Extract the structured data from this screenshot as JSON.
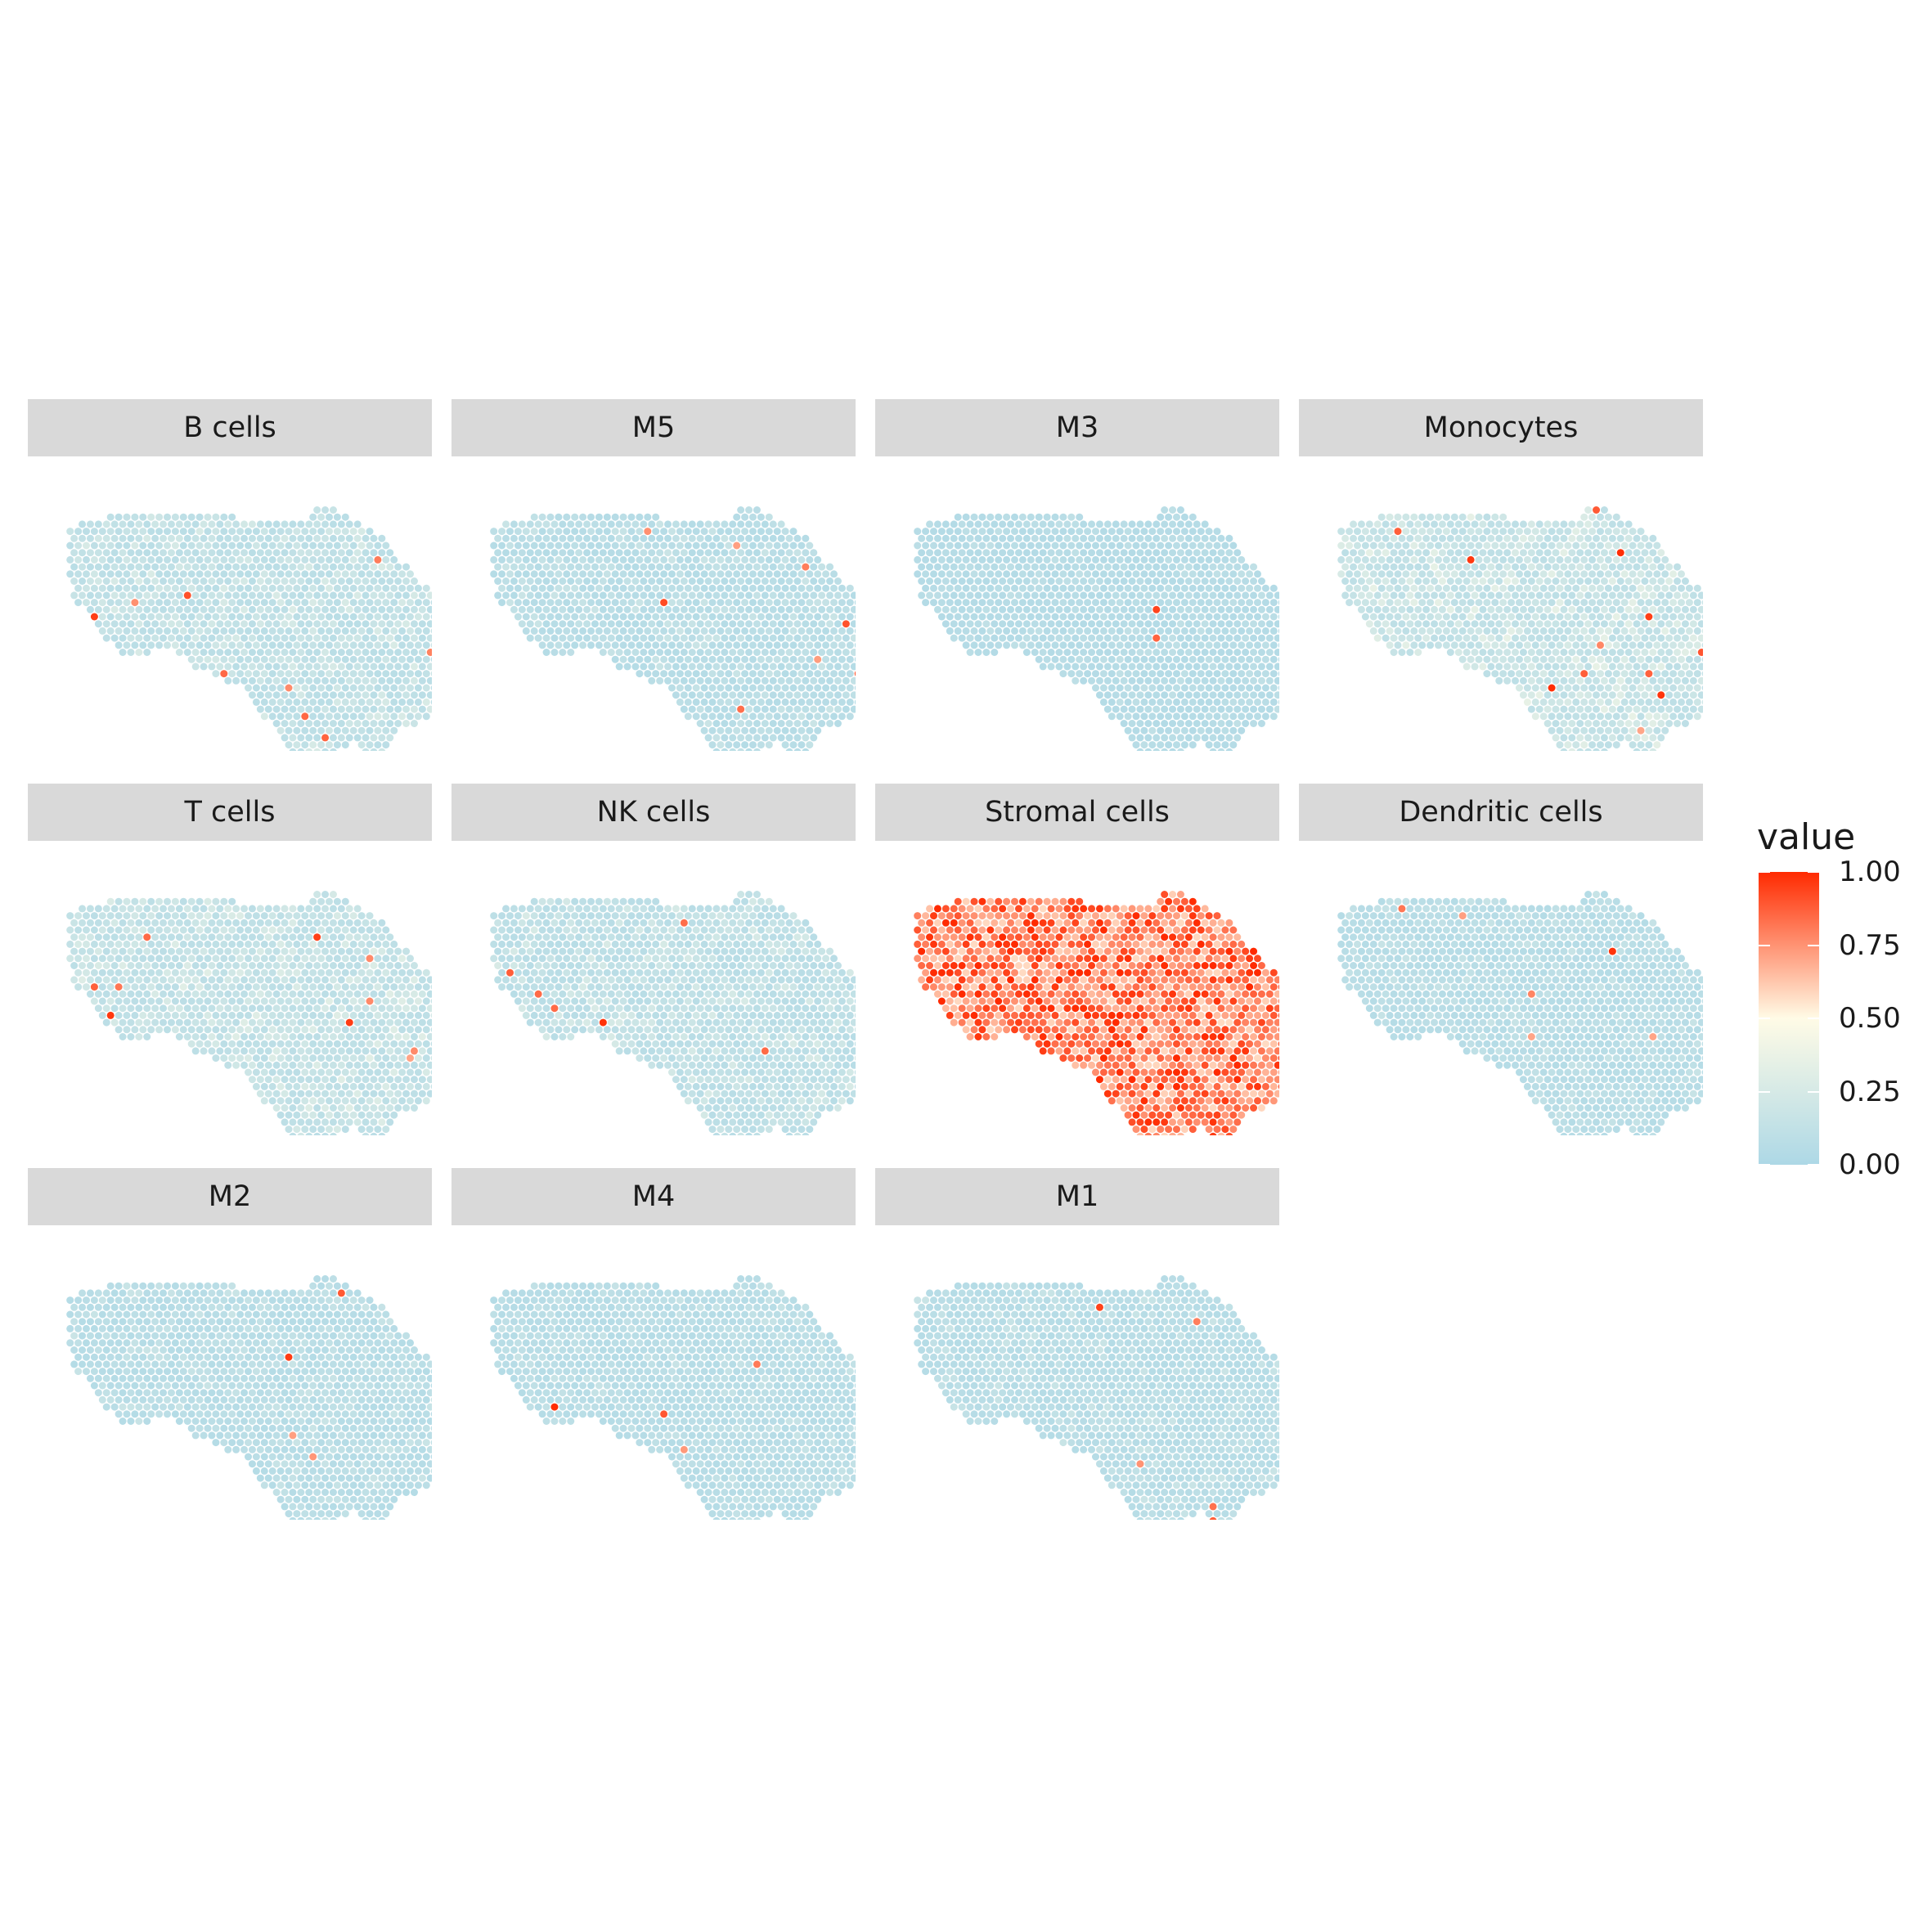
{
  "chart_data": {
    "type": "scatter",
    "colorbar": {
      "title": "value",
      "ticks": [
        "0.00",
        "0.25",
        "0.50",
        "0.75",
        "1.00"
      ],
      "range": [
        0,
        1
      ],
      "colors": {
        "low": "#add8e6",
        "mid": "#fffbe6",
        "high": "#ff2a00"
      }
    },
    "facets": [
      {
        "label": "B cells",
        "mean": 0.08,
        "spread": 0.12,
        "hotspots": 9
      },
      {
        "label": "M5",
        "mean": 0.05,
        "spread": 0.08,
        "hotspots": 8
      },
      {
        "label": "M3",
        "mean": 0.04,
        "spread": 0.05,
        "hotspots": 2
      },
      {
        "label": "Monocytes",
        "mean": 0.1,
        "spread": 0.16,
        "hotspots": 12
      },
      {
        "label": "T cells",
        "mean": 0.09,
        "spread": 0.14,
        "hotspots": 11
      },
      {
        "label": "NK cells",
        "mean": 0.07,
        "spread": 0.12,
        "hotspots": 6
      },
      {
        "label": "Stromal cells",
        "mean": 0.82,
        "spread": 0.22,
        "hotspots": 0
      },
      {
        "label": "Dendritic cells",
        "mean": 0.05,
        "spread": 0.07,
        "hotspots": 6
      },
      {
        "label": "M2",
        "mean": 0.05,
        "spread": 0.08,
        "hotspots": 4
      },
      {
        "label": "M4",
        "mean": 0.05,
        "spread": 0.07,
        "hotspots": 4
      },
      {
        "label": "M1",
        "mean": 0.05,
        "spread": 0.08,
        "hotspots": 5
      }
    ]
  }
}
